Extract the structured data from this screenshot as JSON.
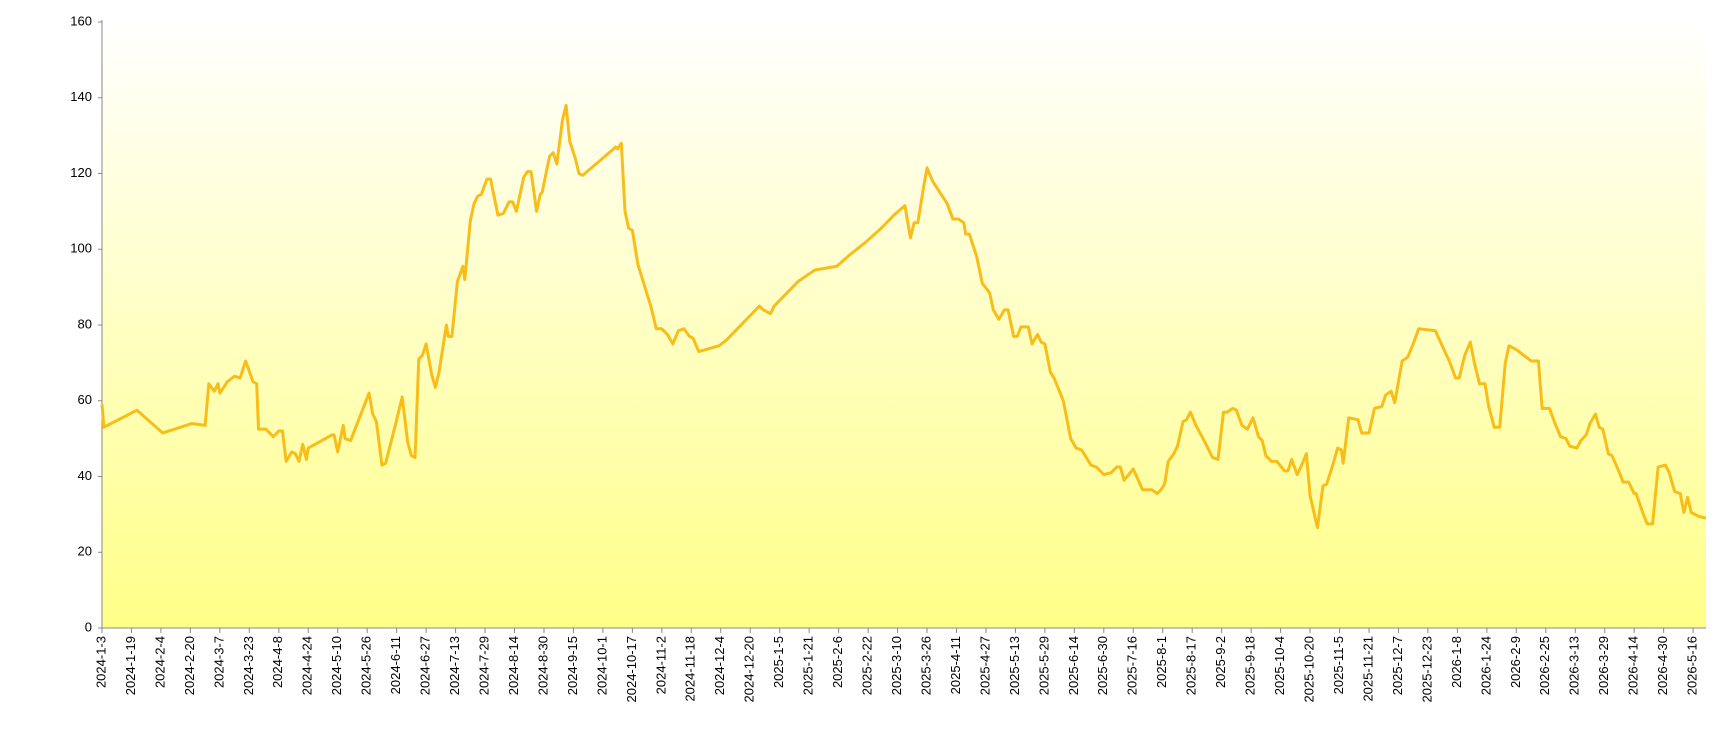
{
  "chart_data": {
    "type": "line",
    "color": "#f8bd19",
    "x": [
      "2024-1-3",
      "2024-1-4",
      "2024-1-22",
      "2024-2-5",
      "2024-2-21",
      "2024-2-28",
      "2024-3-1",
      "2024-3-4",
      "2024-3-6",
      "2024-3-7",
      "2024-3-11",
      "2024-3-15",
      "2024-3-18",
      "2024-3-21",
      "2024-3-25",
      "2024-3-27",
      "2024-3-28",
      "2024-4-1",
      "2024-4-5",
      "2024-4-8",
      "2024-4-10",
      "2024-4-12",
      "2024-4-15",
      "2024-4-17",
      "2024-4-19",
      "2024-4-21",
      "2024-4-23",
      "2024-4-24",
      "2024-5-7",
      "2024-5-8",
      "2024-5-10",
      "2024-5-13",
      "2024-5-14",
      "2024-5-17",
      "2024-5-27",
      "2024-5-29",
      "2024-5-31",
      "2024-6-3",
      "2024-6-5",
      "2024-6-10",
      "2024-6-14",
      "2024-6-17",
      "2024-6-19",
      "2024-6-21",
      "2024-6-23",
      "2024-6-25",
      "2024-6-27",
      "2024-6-30",
      "2024-7-2",
      "2024-7-4",
      "2024-7-8",
      "2024-7-9",
      "2024-7-11",
      "2024-7-14",
      "2024-7-17",
      "2024-7-18",
      "2024-7-21",
      "2024-7-23",
      "2024-7-25",
      "2024-7-27",
      "2024-7-30",
      "2024-8-1",
      "2024-8-5",
      "2024-8-8",
      "2024-8-11",
      "2024-8-13",
      "2024-8-15",
      "2024-8-19",
      "2024-8-21",
      "2024-8-23",
      "2024-8-26",
      "2024-8-28",
      "2024-8-29",
      "2024-9-2",
      "2024-9-4",
      "2024-9-6",
      "2024-9-9",
      "2024-9-11",
      "2024-9-13",
      "2024-9-16",
      "2024-9-18",
      "2024-9-20",
      "2024-10-8",
      "2024-10-9",
      "2024-10-11",
      "2024-10-13",
      "2024-10-15",
      "2024-10-17",
      "2024-10-20",
      "2024-10-27",
      "2024-10-30",
      "2024-11-2",
      "2024-11-5",
      "2024-11-8",
      "2024-11-11",
      "2024-11-14",
      "2024-11-17",
      "2024-11-19",
      "2024-11-22",
      "2024-12-3",
      "2024-12-7",
      "2024-12-13",
      "2024-12-21",
      "2024-12-25",
      "2024-12-27",
      "2024-12-31",
      "2025-1-2",
      "2025-1-9",
      "2025-1-15",
      "2025-1-24",
      "2025-2-5",
      "2025-2-12",
      "2025-2-21",
      "2025-3-1",
      "2025-3-8",
      "2025-3-14",
      "2025-3-17",
      "2025-3-19",
      "2025-3-21",
      "2025-3-24",
      "2025-3-26",
      "2025-3-29",
      "2025-4-6",
      "2025-4-9",
      "2025-4-12",
      "2025-4-15",
      "2025-4-16",
      "2025-4-18",
      "2025-4-22",
      "2025-4-25",
      "2025-4-29",
      "2025-5-1",
      "2025-5-4",
      "2025-5-7",
      "2025-5-9",
      "2025-5-12",
      "2025-5-14",
      "2025-5-16",
      "2025-5-20",
      "2025-5-22",
      "2025-5-25",
      "2025-5-27",
      "2025-5-29",
      "2025-6-1",
      "2025-6-3",
      "2025-6-8",
      "2025-6-12",
      "2025-6-15",
      "2025-6-18",
      "2025-6-23",
      "2025-6-26",
      "2025-6-30",
      "2025-7-4",
      "2025-7-7",
      "2025-7-9",
      "2025-7-11",
      "2025-7-16",
      "2025-7-21",
      "2025-7-26",
      "2025-7-29",
      "2025-7-31",
      "2025-8-2",
      "2025-8-4",
      "2025-8-7",
      "2025-8-9",
      "2025-8-12",
      "2025-8-14",
      "2025-8-16",
      "2025-8-19",
      "2025-8-24",
      "2025-8-26",
      "2025-8-28",
      "2025-8-31",
      "2025-9-3",
      "2025-9-5",
      "2025-9-8",
      "2025-9-10",
      "2025-9-13",
      "2025-9-16",
      "2025-9-19",
      "2025-9-22",
      "2025-9-24",
      "2025-9-26",
      "2025-9-29",
      "2025-10-2",
      "2025-10-6",
      "2025-10-8",
      "2025-10-10",
      "2025-10-13",
      "2025-10-15",
      "2025-10-18",
      "2025-10-20",
      "2025-10-24",
      "2025-10-27",
      "2025-10-29",
      "2025-11-1",
      "2025-11-4",
      "2025-11-6",
      "2025-11-7",
      "2025-11-10",
      "2025-11-15",
      "2025-11-17",
      "2025-11-21",
      "2025-11-24",
      "2025-11-28",
      "2025-11-30",
      "2025-12-3",
      "2025-12-5",
      "2025-12-9",
      "2025-12-12",
      "2025-12-15",
      "2025-12-18",
      "2025-12-27",
      "2026-1-4",
      "2026-1-7",
      "2026-1-9",
      "2026-1-12",
      "2026-1-15",
      "2026-1-17",
      "2026-1-20",
      "2026-1-23",
      "2026-1-25",
      "2026-1-28",
      "2026-1-31",
      "2026-2-3",
      "2026-2-5",
      "2026-2-9",
      "2026-2-17",
      "2026-2-21",
      "2026-2-23",
      "2026-2-27",
      "2026-3-2",
      "2026-3-5",
      "2026-3-8",
      "2026-3-10",
      "2026-3-14",
      "2026-3-16",
      "2026-3-19",
      "2026-3-21",
      "2026-3-24",
      "2026-3-26",
      "2026-3-28",
      "2026-3-31",
      "2026-4-2",
      "2026-4-6",
      "2026-4-8",
      "2026-4-11",
      "2026-4-14",
      "2026-4-15",
      "2026-4-19",
      "2026-4-21",
      "2026-4-24",
      "2026-4-27",
      "2026-5-1",
      "2026-5-3",
      "2026-5-6",
      "2026-5-9",
      "2026-5-11",
      "2026-5-13",
      "2026-5-15",
      "2026-5-19",
      "2026-5-23"
    ],
    "values": [
      59,
      53,
      57.5,
      51.5,
      54,
      53.5,
      64.5,
      62.5,
      64.5,
      62,
      65,
      66.5,
      66,
      70.5,
      65,
      64.5,
      52.5,
      52.5,
      50.5,
      52,
      52,
      44,
      46.5,
      46,
      44,
      48.5,
      44.5,
      47.5,
      51,
      51,
      46.5,
      53.5,
      50,
      49.5,
      62,
      56.5,
      54.5,
      43,
      43.5,
      53,
      61,
      49,
      45.5,
      45,
      71,
      72,
      75,
      67,
      63.5,
      67.5,
      80,
      77,
      77,
      91.5,
      95.5,
      92,
      107.5,
      112,
      114,
      114.5,
      118.5,
      118.5,
      109,
      109.5,
      112.5,
      112.5,
      110,
      119,
      120.5,
      120.5,
      110,
      114.5,
      115,
      124.5,
      125.5,
      122.5,
      134,
      138,
      128.5,
      124,
      120,
      119.5,
      127,
      126.5,
      128,
      110,
      105.5,
      105,
      96,
      85,
      79,
      79,
      77.5,
      75,
      78.5,
      79,
      77,
      76.5,
      73,
      74.5,
      76,
      79,
      83,
      85,
      84,
      83,
      85,
      88.5,
      91.5,
      94.5,
      95.5,
      98.5,
      102,
      105.5,
      109,
      111.5,
      103,
      107,
      107,
      116,
      121.5,
      118,
      112,
      108,
      108,
      107,
      104,
      104,
      98,
      91,
      88.5,
      84,
      81.5,
      84,
      84,
      77,
      77,
      79.5,
      79.5,
      75,
      77.5,
      75.5,
      75,
      67.5,
      66,
      60,
      50,
      47.5,
      47,
      43,
      42.5,
      40.5,
      41,
      42.5,
      42.5,
      39,
      42,
      36.5,
      36.5,
      35.5,
      36.5,
      38,
      44,
      46,
      48,
      54.5,
      55,
      57,
      53.5,
      49,
      47,
      45,
      44.5,
      57,
      57,
      58,
      57.5,
      53.5,
      52.5,
      55.5,
      50.5,
      49.5,
      45.5,
      44,
      44,
      41.5,
      41.5,
      44.5,
      40.5,
      42.5,
      46,
      35,
      26.5,
      37.5,
      38,
      42.5,
      47.5,
      47,
      43.5,
      55.5,
      55,
      51.5,
      51.5,
      58,
      58.5,
      61.5,
      62.5,
      59.5,
      70.5,
      71.5,
      75,
      79,
      78.5,
      70,
      66,
      66,
      72,
      75.5,
      70.5,
      64.5,
      64.5,
      58.5,
      53,
      53,
      70,
      74.5,
      73.5,
      70.5,
      70.5,
      58,
      58,
      54,
      50.5,
      50,
      48,
      47.5,
      49.5,
      51,
      54,
      56.5,
      53,
      52.5,
      46,
      45.5,
      41,
      38.5,
      38.5,
      35.5,
      35.5,
      30,
      27.5,
      27.5,
      42.5,
      43,
      41,
      36,
      35.5,
      30.5,
      34.5,
      30.5,
      29.5,
      29
    ],
    "xlim": [
      "2024-1-3",
      "2026-5-23"
    ],
    "xticks": [
      "2024-1-3",
      "2024-1-19",
      "2024-2-4",
      "2024-2-20",
      "2024-3-7",
      "2024-3-23",
      "2024-4-8",
      "2024-4-24",
      "2024-5-10",
      "2024-5-26",
      "2024-6-11",
      "2024-6-27",
      "2024-7-13",
      "2024-7-29",
      "2024-8-14",
      "2024-8-30",
      "2024-9-15",
      "2024-10-1",
      "2024-10-17",
      "2024-11-2",
      "2024-11-18",
      "2024-12-4",
      "2024-12-20",
      "2025-1-5",
      "2025-1-21",
      "2025-2-6",
      "2025-2-22",
      "2025-3-10",
      "2025-3-26",
      "2025-4-11",
      "2025-4-27",
      "2025-5-13",
      "2025-5-29",
      "2025-6-14",
      "2025-6-30",
      "2025-7-16",
      "2025-8-1",
      "2025-8-17",
      "2025-9-2",
      "2025-9-18",
      "2025-10-4",
      "2025-10-20",
      "2025-11-5",
      "2025-11-21",
      "2025-12-7",
      "2025-12-23",
      "2026-1-8",
      "2026-1-24",
      "2026-2-9",
      "2026-2-25",
      "2026-3-13",
      "2026-3-29",
      "2026-4-14",
      "2026-4-30",
      "2026-5-16"
    ],
    "ylim": [
      0,
      160
    ],
    "yticks": [
      0,
      20,
      40,
      60,
      80,
      100,
      120,
      140,
      160
    ],
    "grid": false
  }
}
